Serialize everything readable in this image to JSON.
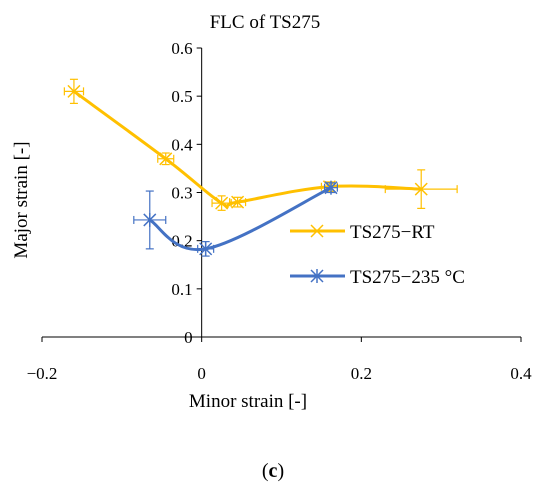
{
  "chart_data": {
    "type": "scatter",
    "title": "FLC of TS275",
    "xlabel": "Minor strain [-]",
    "ylabel": "Major strain [-]",
    "xlim": [
      -0.2,
      0.4
    ],
    "ylim": [
      0,
      0.6
    ],
    "x_ticks": [
      "−0.2",
      "0",
      "0.2",
      "0.4"
    ],
    "y_ticks": [
      "0",
      "0.1",
      "0.2",
      "0.3",
      "0.4",
      "0.5",
      "0.6"
    ],
    "grid": false,
    "legend_position": "right",
    "series": [
      {
        "name": "TS275−RT",
        "color": "#ffc000",
        "marker": "x",
        "points": [
          {
            "x": -0.16,
            "y": 0.51,
            "xerr": 0.012,
            "yerr": 0.025
          },
          {
            "x": -0.045,
            "y": 0.37,
            "xerr": 0.01,
            "yerr": 0.012
          },
          {
            "x": 0.025,
            "y": 0.278,
            "xerr": 0.012,
            "yerr": 0.015
          },
          {
            "x": 0.045,
            "y": 0.28,
            "xerr": 0.01,
            "yerr": 0.01
          },
          {
            "x": 0.16,
            "y": 0.312,
            "xerr": 0.01,
            "yerr": 0.01
          },
          {
            "x": 0.275,
            "y": 0.307,
            "xerr": 0.045,
            "yerr": 0.04
          }
        ]
      },
      {
        "name": "TS275−235 °C",
        "color": "#4472c4",
        "marker": "asterisk",
        "points": [
          {
            "x": -0.065,
            "y": 0.243,
            "xerr": 0.02,
            "yerr": 0.06
          },
          {
            "x": 0.005,
            "y": 0.183,
            "xerr": 0.01,
            "yerr": 0.015
          },
          {
            "x": 0.162,
            "y": 0.31,
            "xerr": 0.008,
            "yerr": 0.01
          }
        ]
      }
    ]
  },
  "caption": {
    "prefix": "(",
    "letter": "c",
    "suffix": ")"
  }
}
